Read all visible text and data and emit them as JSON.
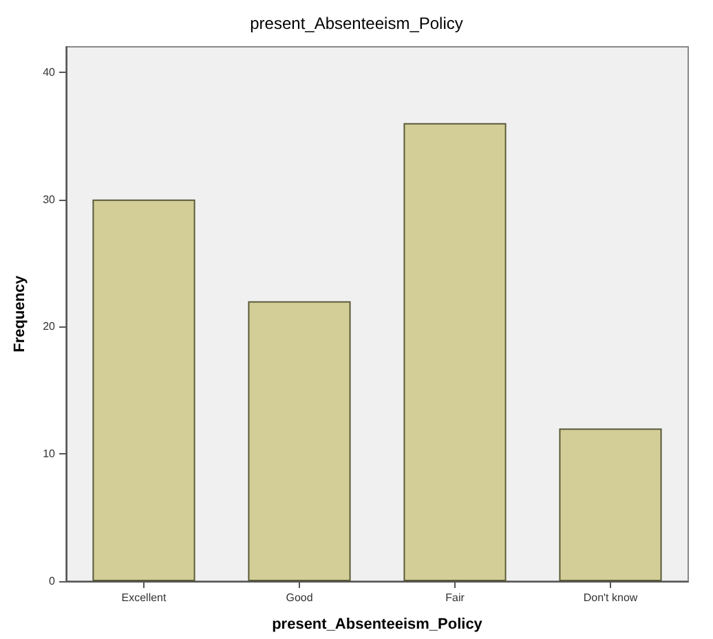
{
  "chart_data": {
    "type": "bar",
    "title": "present_Absenteeism_Policy",
    "xlabel": "present_Absenteeism_Policy",
    "ylabel": "Frequency",
    "categories": [
      "Excellent",
      "Good",
      "Fair",
      "Don't know"
    ],
    "values": [
      30,
      22,
      36,
      12
    ],
    "color": "#d3ce97",
    "ylim": [
      0,
      42
    ],
    "yticks": [
      0,
      10,
      20,
      30,
      40
    ],
    "grid": false
  }
}
